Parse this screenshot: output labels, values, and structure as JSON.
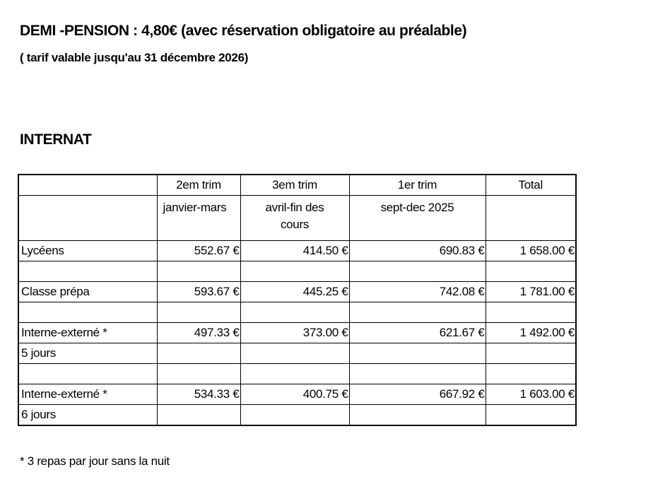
{
  "heading": "DEMI -PENSION  : 4,80€  (avec réservation obligatoire au préalable)",
  "subheading": "( tarif valable jusqu'au 31 décembre 2026)",
  "section_title": "INTERNAT",
  "table": {
    "headers": [
      "",
      "2em trim",
      "3em trim",
      "1er trim",
      "Total"
    ],
    "subheaders": [
      "",
      "janvier-mars",
      "avril-fin des cours",
      "sept-dec 2025",
      ""
    ],
    "rows": [
      [
        "Lycéens",
        "552.67 €",
        "414.50 €",
        "690.83 €",
        "1 658.00 €"
      ],
      [
        "",
        "",
        "",
        "",
        ""
      ],
      [
        "Classe prépa",
        "593.67 €",
        "445.25 €",
        "742.08 €",
        "1 781.00 €"
      ],
      [
        "",
        "",
        "",
        "",
        ""
      ],
      [
        "Interne-externé *",
        "497.33 €",
        "373.00 €",
        "621.67 €",
        "1 492.00 €"
      ],
      [
        "5 jours",
        "",
        "",
        "",
        ""
      ],
      [
        "",
        "",
        "",
        "",
        ""
      ],
      [
        "Interne-externé *",
        "534.33 €",
        "400.75 €",
        "667.92 €",
        "1 603.00 €"
      ],
      [
        "6 jours",
        "",
        "",
        "",
        ""
      ]
    ]
  },
  "footnote": "* 3 repas par jour sans la nuit"
}
